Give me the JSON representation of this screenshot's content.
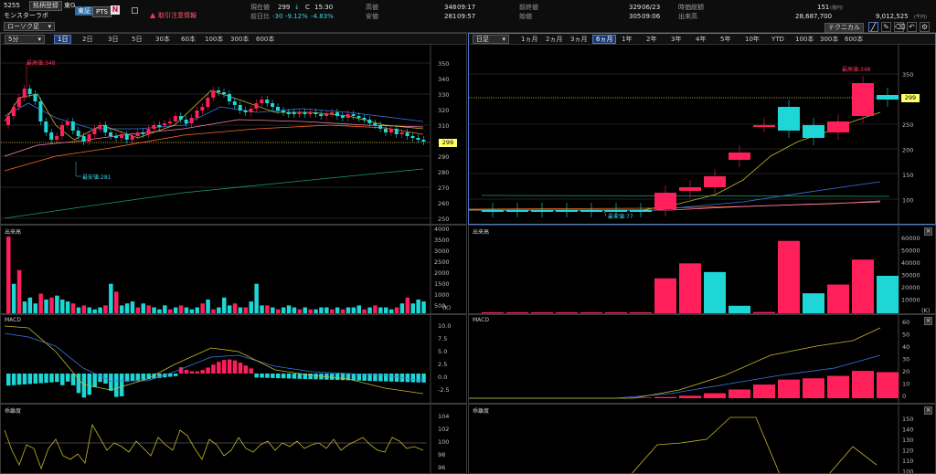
{
  "header": {
    "code": "5255",
    "issue_btn": "銘柄登録",
    "market": "東G",
    "name": "モンスターラボ",
    "tab_tse": "東証",
    "tab_pts": "PTS",
    "alert": "取引注意情報",
    "current_label": "現在値",
    "current_value": "299",
    "current_arrow": "↓",
    "current_c": "C",
    "current_time": "15:30",
    "prevdiff_label": "前日比",
    "prevdiff_value": "-30",
    "prevdiff_pct": "-9.12%",
    "prevdiff_pct2": "-4.83%",
    "high_label": "高値",
    "high_value": "348",
    "high_time": "09:17",
    "low_label": "安値",
    "low_value": "281",
    "low_time": "09:57",
    "prevclose_label": "前終値",
    "prevclose_value": "329",
    "prevclose_date": "06/23",
    "open_label": "始値",
    "open_value": "305",
    "open_time": "09:06",
    "mcap_label": "時価総額",
    "mcap_value": "151",
    "mcap_unit": "(億円)",
    "volume_label": "出来高",
    "volume_value": "28,687,700",
    "turnover_value": "9,012,525",
    "turnover_unit": "(千円)",
    "technical_btn": "テクニカル"
  },
  "left_chart": {
    "interval": "5分",
    "chart_type": "ローソク足",
    "ranges": [
      "1日",
      "2日",
      "3日",
      "5日",
      "30本",
      "60本",
      "100本",
      "300本",
      "600本"
    ],
    "selected_range": "1日",
    "high_note": "最高値:348",
    "low_note": "最安値:281",
    "price_label": "299",
    "yticks": [
      "350",
      "340",
      "330",
      "320",
      "310",
      "300",
      "290",
      "280",
      "270",
      "260",
      "250"
    ],
    "volume_title": "出来高",
    "volume_ticks": [
      "4000",
      "3500",
      "3000",
      "2500",
      "2000",
      "1500",
      "1000",
      "500"
    ],
    "volume_unit": "(K)",
    "macd_title": "MACD",
    "macd_ticks": [
      "10.0",
      "7.5",
      "5.0",
      "2.5",
      "0.0",
      "-2.5"
    ],
    "ratio_title": "乖離度",
    "ratio_ticks": [
      "104",
      "102",
      "100",
      "98",
      "96"
    ]
  },
  "right_chart": {
    "interval": "日足",
    "ranges": [
      "1ヵ月",
      "2ヵ月",
      "3ヵ月",
      "6ヵ月",
      "1年",
      "2年",
      "3年",
      "4年",
      "5年",
      "10年",
      "YTD",
      "100本",
      "300本",
      "600本"
    ],
    "selected_range": "6ヵ月",
    "high_note": "最高値:348",
    "low_note": "最安値:77",
    "price_label": "299",
    "yticks": [
      "350",
      "300",
      "250",
      "200",
      "150",
      "100"
    ],
    "volume_title": "出来高",
    "volume_ticks": [
      "60000",
      "50000",
      "40000",
      "30000",
      "20000",
      "10000"
    ],
    "volume_unit": "(K)",
    "macd_title": "MACD",
    "macd_ticks": [
      "60",
      "50",
      "40",
      "30",
      "20",
      "10",
      "0"
    ],
    "ratio_title": "乖離度",
    "ratio_ticks": [
      "150",
      "140",
      "130",
      "120",
      "110",
      "100"
    ]
  },
  "colors": {
    "up": "#ff1f5a",
    "down": "#1fd6d6",
    "bg": "#000000",
    "accent": "#ffff66"
  }
}
